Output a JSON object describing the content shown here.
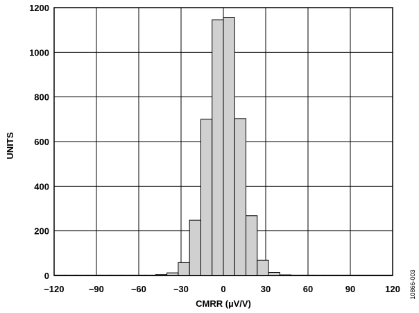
{
  "chart_data": {
    "type": "bar",
    "title": "",
    "xlabel": "CMRR (µV/V)",
    "ylabel": "UNITS",
    "xlim": [
      -120,
      120
    ],
    "ylim": [
      0,
      1200
    ],
    "grid": true,
    "bin_width": 8,
    "x_tick_labels": [
      "–120",
      "–90",
      "–60",
      "–30",
      "0",
      "30",
      "60",
      "90",
      "120"
    ],
    "x_tick_values": [
      -120,
      -90,
      -60,
      -30,
      0,
      30,
      60,
      90,
      120
    ],
    "y_tick_labels": [
      "0",
      "200",
      "400",
      "600",
      "800",
      "1000",
      "1200"
    ],
    "y_tick_values": [
      0,
      200,
      400,
      600,
      800,
      1000,
      1200
    ],
    "bars": [
      {
        "x": -116,
        "value": 2
      },
      {
        "x": -108,
        "value": 2
      },
      {
        "x": -100,
        "value": 2
      },
      {
        "x": -92,
        "value": 2
      },
      {
        "x": -84,
        "value": 2
      },
      {
        "x": -76,
        "value": 2
      },
      {
        "x": -68,
        "value": 2
      },
      {
        "x": -60,
        "value": 2
      },
      {
        "x": -52,
        "value": 2
      },
      {
        "x": -44,
        "value": 4
      },
      {
        "x": -36,
        "value": 12
      },
      {
        "x": -28,
        "value": 58
      },
      {
        "x": -20,
        "value": 248
      },
      {
        "x": -12,
        "value": 700
      },
      {
        "x": -4,
        "value": 1145
      },
      {
        "x": 4,
        "value": 1155
      },
      {
        "x": 12,
        "value": 703
      },
      {
        "x": 20,
        "value": 268
      },
      {
        "x": 28,
        "value": 68
      },
      {
        "x": 36,
        "value": 14
      },
      {
        "x": 44,
        "value": 3
      },
      {
        "x": 52,
        "value": 2
      },
      {
        "x": 60,
        "value": 2
      },
      {
        "x": 68,
        "value": 2
      },
      {
        "x": 76,
        "value": 2
      },
      {
        "x": 84,
        "value": 2
      },
      {
        "x": 92,
        "value": 2
      },
      {
        "x": 100,
        "value": 2
      },
      {
        "x": 108,
        "value": 2
      },
      {
        "x": 116,
        "value": 2
      }
    ],
    "bar_fill": "#d0d0d0",
    "bar_stroke": "#000000",
    "grid_color": "#000000"
  },
  "figure_id": "10866-003"
}
